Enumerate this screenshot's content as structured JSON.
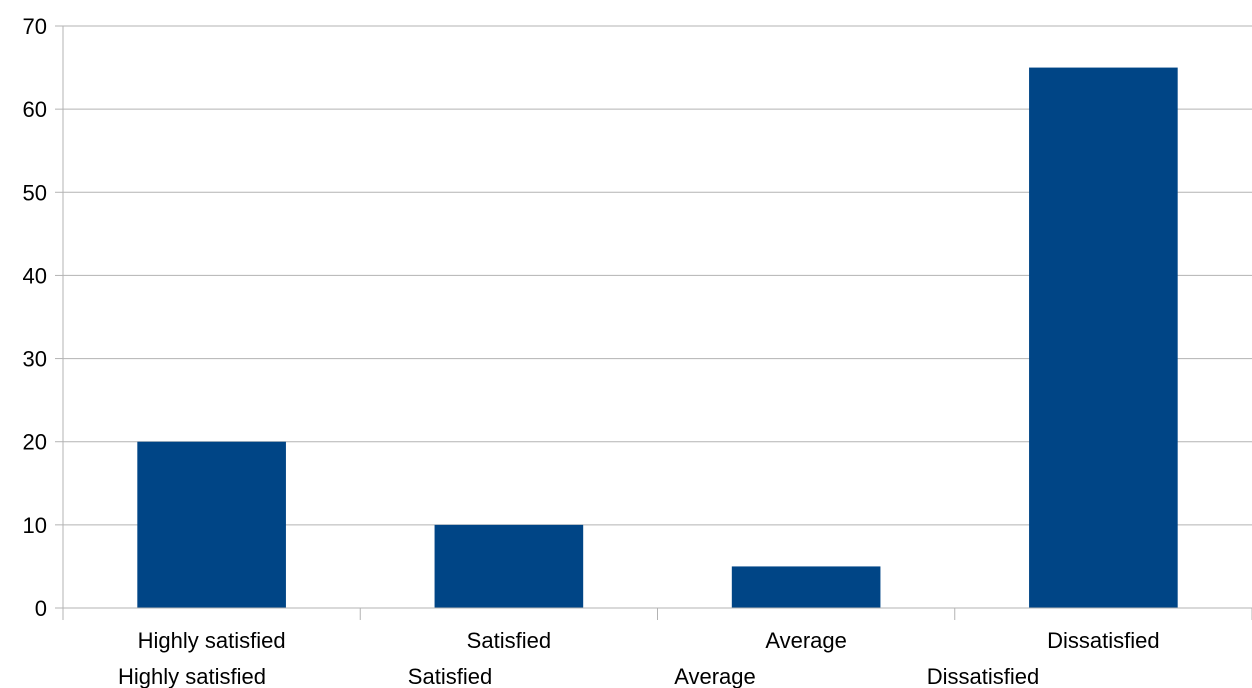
{
  "chart_data": {
    "type": "bar",
    "categories": [
      "Highly satisfied",
      "Satisfied",
      "Average",
      "Dissatisfied"
    ],
    "values": [
      20,
      10,
      5,
      65
    ],
    "secondary_category_labels": [
      "Highly satisfied",
      "Satisfied",
      "Average",
      "Dissatisfied"
    ],
    "ylim": [
      0,
      70
    ],
    "yticks": [
      0,
      10,
      20,
      30,
      40,
      50,
      60,
      70
    ],
    "title": "",
    "xlabel": "",
    "ylabel": "",
    "grid": true,
    "bar_color": "#004586",
    "legend": "none"
  }
}
